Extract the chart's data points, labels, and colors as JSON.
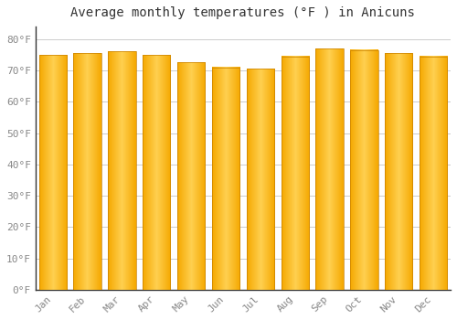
{
  "title": "Average monthly temperatures (°F ) in Anicuns",
  "categories": [
    "Jan",
    "Feb",
    "Mar",
    "Apr",
    "May",
    "Jun",
    "Jul",
    "Aug",
    "Sep",
    "Oct",
    "Nov",
    "Dec"
  ],
  "values": [
    75.0,
    75.5,
    76.0,
    75.0,
    72.5,
    71.0,
    70.5,
    74.5,
    77.0,
    76.5,
    75.5,
    74.5
  ],
  "bar_color_left": "#F5A800",
  "bar_color_center": "#FFD050",
  "bar_color_right": "#F5A800",
  "background_color": "#FFFFFF",
  "grid_color": "#CCCCCC",
  "ytick_labels": [
    "0°F",
    "10°F",
    "20°F",
    "30°F",
    "40°F",
    "50°F",
    "60°F",
    "70°F",
    "80°F"
  ],
  "ytick_values": [
    0,
    10,
    20,
    30,
    40,
    50,
    60,
    70,
    80
  ],
  "ylim": [
    0,
    84
  ],
  "title_fontsize": 10,
  "tick_fontsize": 8,
  "title_font": "monospace",
  "tick_font": "monospace",
  "tick_color": "#888888",
  "spine_color": "#333333"
}
